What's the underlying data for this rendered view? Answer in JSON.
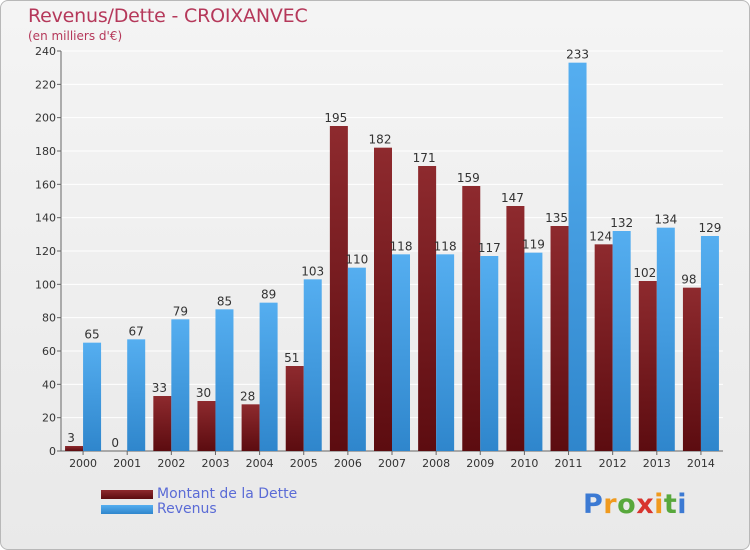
{
  "chart_data": {
    "type": "bar",
    "title": "Revenus/Dette - CROIXANVEC",
    "subtitle": "(en milliers d'€)",
    "categories": [
      "2000",
      "2001",
      "2002",
      "2003",
      "2004",
      "2005",
      "2006",
      "2007",
      "2008",
      "2009",
      "2010",
      "2011",
      "2012",
      "2013",
      "2014"
    ],
    "series": [
      {
        "name": "Montant de la Dette",
        "color": "#7b1e22",
        "values": [
          3,
          0,
          33,
          30,
          28,
          51,
          195,
          182,
          171,
          159,
          147,
          135,
          124,
          102,
          98
        ]
      },
      {
        "name": "Revenus",
        "color": "#3f9be0",
        "values": [
          65,
          67,
          79,
          85,
          89,
          103,
          110,
          118,
          118,
          117,
          119,
          233,
          132,
          134,
          129
        ]
      }
    ],
    "ylim": [
      0,
      240
    ],
    "yticks": [
      0,
      20,
      40,
      60,
      80,
      100,
      120,
      140,
      160,
      180,
      200,
      220,
      240
    ],
    "grid": true,
    "legend_position": "bottom-left"
  },
  "logo": {
    "letters": [
      "P",
      "r",
      "o",
      "x",
      "i",
      "t",
      "i"
    ]
  }
}
